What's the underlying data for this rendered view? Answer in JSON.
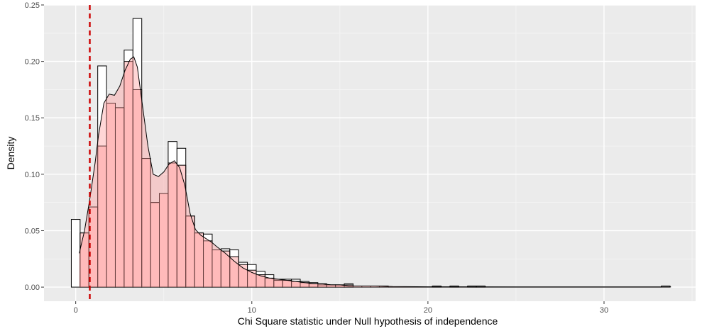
{
  "chart_data": {
    "type": "bar",
    "title": "",
    "xlabel": "Chi Square statistic under Null hypothesis of independence",
    "ylabel": "Density",
    "xlim": [
      -1.8,
      35.2
    ],
    "ylim": [
      -0.0125,
      0.25
    ],
    "x_ticks": [
      0,
      10,
      20,
      30
    ],
    "x_tick_labels": [
      "0",
      "10",
      "20",
      "30"
    ],
    "y_ticks": [
      0.0,
      0.05,
      0.1,
      0.15,
      0.2,
      0.25
    ],
    "y_tick_labels": [
      "0.00",
      "0.05",
      "0.10",
      "0.15",
      "0.20",
      "0.25"
    ],
    "grid": true,
    "legend": "none",
    "bin_width": 0.5,
    "outline_series": {
      "bins": [
        {
          "x0": -0.25,
          "v": 0.06
        },
        {
          "x0": 0.25,
          "v": 0.048
        },
        {
          "x0": 0.75,
          "v": 0.071
        },
        {
          "x0": 1.25,
          "v": 0.196
        },
        {
          "x0": 1.75,
          "v": 0.163
        },
        {
          "x0": 2.25,
          "v": 0.159
        },
        {
          "x0": 2.75,
          "v": 0.21
        },
        {
          "x0": 3.25,
          "v": 0.238
        },
        {
          "x0": 3.75,
          "v": 0.114
        },
        {
          "x0": 4.25,
          "v": 0.075
        },
        {
          "x0": 4.75,
          "v": 0.083
        },
        {
          "x0": 5.25,
          "v": 0.129
        },
        {
          "x0": 5.75,
          "v": 0.123
        },
        {
          "x0": 6.25,
          "v": 0.063
        },
        {
          "x0": 6.75,
          "v": 0.048
        },
        {
          "x0": 7.25,
          "v": 0.047
        },
        {
          "x0": 7.75,
          "v": 0.033
        },
        {
          "x0": 8.25,
          "v": 0.034
        },
        {
          "x0": 8.75,
          "v": 0.033
        },
        {
          "x0": 9.25,
          "v": 0.022
        },
        {
          "x0": 9.75,
          "v": 0.02
        },
        {
          "x0": 10.25,
          "v": 0.014
        },
        {
          "x0": 10.75,
          "v": 0.011
        },
        {
          "x0": 11.25,
          "v": 0.007
        },
        {
          "x0": 11.75,
          "v": 0.007
        },
        {
          "x0": 12.25,
          "v": 0.007
        },
        {
          "x0": 12.75,
          "v": 0.005
        },
        {
          "x0": 13.25,
          "v": 0.004
        },
        {
          "x0": 13.75,
          "v": 0.003
        },
        {
          "x0": 14.25,
          "v": 0.002
        },
        {
          "x0": 14.75,
          "v": 0.002
        },
        {
          "x0": 15.25,
          "v": 0.003
        },
        {
          "x0": 15.75,
          "v": 0.001
        },
        {
          "x0": 16.25,
          "v": 0.001
        },
        {
          "x0": 16.75,
          "v": 0.001
        },
        {
          "x0": 17.25,
          "v": 0.001
        },
        {
          "x0": 20.25,
          "v": 0.001
        },
        {
          "x0": 21.25,
          "v": 0.001
        },
        {
          "x0": 22.25,
          "v": 0.001
        },
        {
          "x0": 22.75,
          "v": 0.001
        },
        {
          "x0": 33.25,
          "v": 0.001
        }
      ],
      "baseline_segment": [
        17.75,
        33.25
      ]
    },
    "filled_series": {
      "color": "#FF9999",
      "bins": [
        {
          "x0": 0.25,
          "v": 0.048
        },
        {
          "x0": 0.75,
          "v": 0.071
        },
        {
          "x0": 1.25,
          "v": 0.125
        },
        {
          "x0": 1.75,
          "v": 0.163
        },
        {
          "x0": 2.25,
          "v": 0.159
        },
        {
          "x0": 2.75,
          "v": 0.2
        },
        {
          "x0": 3.25,
          "v": 0.175
        },
        {
          "x0": 3.75,
          "v": 0.114
        },
        {
          "x0": 4.25,
          "v": 0.075
        },
        {
          "x0": 4.75,
          "v": 0.083
        },
        {
          "x0": 5.25,
          "v": 0.11
        },
        {
          "x0": 5.75,
          "v": 0.108
        },
        {
          "x0": 6.25,
          "v": 0.063
        },
        {
          "x0": 6.75,
          "v": 0.048
        },
        {
          "x0": 7.25,
          "v": 0.041
        },
        {
          "x0": 7.75,
          "v": 0.033
        },
        {
          "x0": 8.25,
          "v": 0.032
        },
        {
          "x0": 8.75,
          "v": 0.027
        },
        {
          "x0": 9.25,
          "v": 0.02
        },
        {
          "x0": 9.75,
          "v": 0.015
        },
        {
          "x0": 10.25,
          "v": 0.011
        },
        {
          "x0": 10.75,
          "v": 0.008
        },
        {
          "x0": 11.25,
          "v": 0.006
        },
        {
          "x0": 11.75,
          "v": 0.006
        },
        {
          "x0": 12.25,
          "v": 0.005
        },
        {
          "x0": 12.75,
          "v": 0.004
        },
        {
          "x0": 13.25,
          "v": 0.003
        },
        {
          "x0": 13.75,
          "v": 0.002
        },
        {
          "x0": 14.25,
          "v": 0.002
        },
        {
          "x0": 14.75,
          "v": 0.002
        },
        {
          "x0": 15.25,
          "v": 0.002
        }
      ]
    },
    "density_curve": {
      "color": "#FF9999",
      "x": [
        0.2,
        0.5,
        0.8,
        1.1,
        1.3,
        1.6,
        1.9,
        2.2,
        2.5,
        2.8,
        3.1,
        3.3,
        3.5,
        3.8,
        4.1,
        4.4,
        4.7,
        5.0,
        5.3,
        5.6,
        5.9,
        6.2,
        6.5,
        6.8,
        7.1,
        7.4,
        7.7,
        8.0,
        8.5,
        9.0,
        9.5,
        10.0,
        10.5,
        11.0,
        11.5,
        12.0,
        12.5,
        13.0,
        13.5,
        14.0,
        14.5,
        15.0,
        15.5,
        16.0,
        17.0,
        18.0,
        20.0,
        25.0,
        30.0,
        33.8
      ],
      "y": [
        0.03,
        0.05,
        0.078,
        0.11,
        0.135,
        0.163,
        0.171,
        0.17,
        0.178,
        0.192,
        0.202,
        0.204,
        0.195,
        0.16,
        0.125,
        0.1,
        0.098,
        0.102,
        0.109,
        0.112,
        0.106,
        0.09,
        0.065,
        0.051,
        0.046,
        0.043,
        0.04,
        0.036,
        0.03,
        0.023,
        0.017,
        0.013,
        0.01,
        0.008,
        0.007,
        0.006,
        0.005,
        0.004,
        0.003,
        0.003,
        0.002,
        0.002,
        0.001,
        0.001,
        0.001,
        0.0005,
        0.0003,
        0.0002,
        0.0002,
        0.0002
      ]
    },
    "reference_line": {
      "x": 0.8,
      "color": "#CC0000",
      "style": "dashed"
    }
  }
}
